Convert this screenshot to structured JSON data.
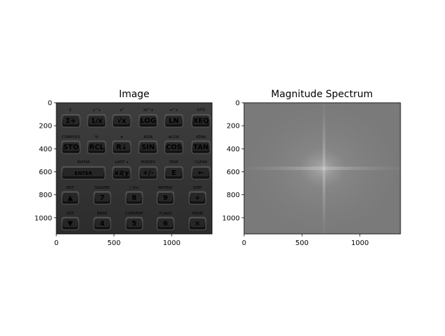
{
  "chart_data": [
    {
      "type": "heatmap",
      "title": "Image",
      "subject": "grayscale photo of a calculator keypad",
      "colormap": "gray",
      "xlim": [
        0,
        1350
      ],
      "ylim": [
        1140,
        0
      ],
      "x_ticks": [
        0,
        500,
        1000
      ],
      "y_ticks": [
        0,
        200,
        400,
        600,
        800,
        1000
      ],
      "key_rows": [
        {
          "top": [
            "Σ-",
            "y^x",
            "x²",
            "10^x",
            "e^x",
            "GTO"
          ],
          "keys": [
            "Σ+",
            "1/x",
            "√x",
            "LOG",
            "LN",
            "XEQ"
          ]
        },
        {
          "top": [
            "COMPLEX",
            "%",
            "π",
            "ASIN",
            "ACOS",
            "ATAN"
          ],
          "keys": [
            "STO",
            "RCL",
            "R↓",
            "SIN",
            "COS",
            "TAN"
          ]
        },
        {
          "top": [
            "ALPHA",
            "",
            "LAST x",
            "MODES",
            "DISP",
            "CLEAR"
          ],
          "keys": [
            "ENTER",
            "",
            "x≷y",
            "+/-",
            "E",
            "←"
          ]
        },
        {
          "top": [
            "BST",
            "SOLVER",
            "∫ f(x)",
            "MATRIX",
            "STAT"
          ],
          "keys": [
            "▲",
            "7",
            "8",
            "9",
            "÷"
          ]
        },
        {
          "top": [
            "SST",
            "BASE",
            "CONVERT",
            "FLAGS",
            "PROB"
          ],
          "keys": [
            "▼",
            "4",
            "5",
            "6",
            "×"
          ]
        }
      ]
    },
    {
      "type": "heatmap",
      "title": "Magnitude Spectrum",
      "subject": "log magnitude of the 2D Fourier transform, centered",
      "colormap": "gray",
      "xlim": [
        0,
        1350
      ],
      "ylim": [
        1140,
        0
      ],
      "x_ticks": [
        0,
        500,
        1000
      ],
      "y_ticks": [
        0,
        200,
        400,
        600,
        800,
        1000
      ],
      "center": [
        690,
        570
      ]
    }
  ]
}
